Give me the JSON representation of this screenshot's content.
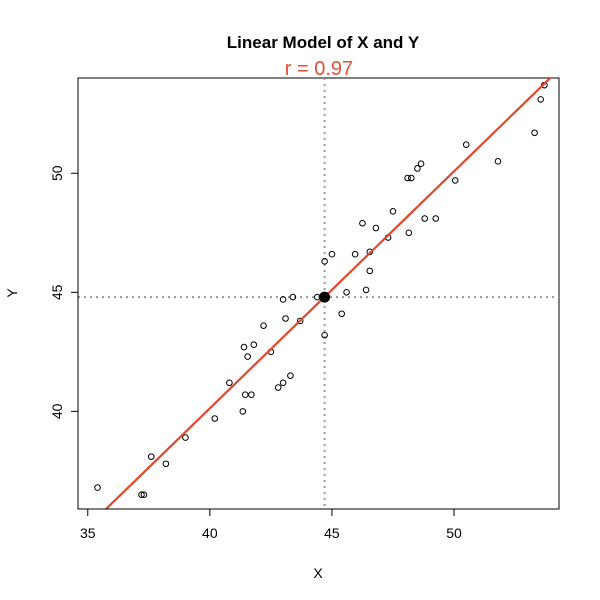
{
  "chart_data": {
    "type": "scatter",
    "title": "Linear Model of X and Y",
    "subtitle": "r = 0.97",
    "xlabel": "X",
    "ylabel": "Y",
    "xlim": [
      34.6,
      54.3
    ],
    "ylim": [
      35.9,
      54.0
    ],
    "xticks": [
      35,
      40,
      45,
      50
    ],
    "yticks": [
      40,
      45,
      50
    ],
    "mean_point": {
      "x": 44.7,
      "y": 44.8
    },
    "regression_line": {
      "slope": 0.995,
      "intercept": 0.33
    },
    "points": [
      {
        "x": 35.4,
        "y": 36.8
      },
      {
        "x": 37.2,
        "y": 36.5
      },
      {
        "x": 37.3,
        "y": 36.5
      },
      {
        "x": 37.6,
        "y": 38.1
      },
      {
        "x": 38.2,
        "y": 37.8
      },
      {
        "x": 39.0,
        "y": 38.9
      },
      {
        "x": 40.2,
        "y": 39.7
      },
      {
        "x": 40.8,
        "y": 41.2
      },
      {
        "x": 41.35,
        "y": 40.0
      },
      {
        "x": 41.45,
        "y": 40.7
      },
      {
        "x": 41.7,
        "y": 40.7
      },
      {
        "x": 41.4,
        "y": 42.7
      },
      {
        "x": 41.55,
        "y": 42.3
      },
      {
        "x": 41.8,
        "y": 42.8
      },
      {
        "x": 42.2,
        "y": 43.6
      },
      {
        "x": 42.5,
        "y": 42.5
      },
      {
        "x": 42.8,
        "y": 41.0
      },
      {
        "x": 43.0,
        "y": 41.2
      },
      {
        "x": 43.3,
        "y": 41.5
      },
      {
        "x": 43.1,
        "y": 43.9
      },
      {
        "x": 43.0,
        "y": 44.7
      },
      {
        "x": 43.4,
        "y": 44.8
      },
      {
        "x": 43.7,
        "y": 43.8
      },
      {
        "x": 44.4,
        "y": 44.8
      },
      {
        "x": 44.7,
        "y": 43.2
      },
      {
        "x": 44.7,
        "y": 46.3
      },
      {
        "x": 45.0,
        "y": 46.6
      },
      {
        "x": 45.4,
        "y": 44.1
      },
      {
        "x": 45.6,
        "y": 45.0
      },
      {
        "x": 45.95,
        "y": 46.6
      },
      {
        "x": 46.25,
        "y": 47.9
      },
      {
        "x": 46.4,
        "y": 45.1
      },
      {
        "x": 46.55,
        "y": 45.9
      },
      {
        "x": 46.55,
        "y": 46.7
      },
      {
        "x": 46.8,
        "y": 47.7
      },
      {
        "x": 47.3,
        "y": 47.3
      },
      {
        "x": 47.5,
        "y": 48.4
      },
      {
        "x": 48.15,
        "y": 47.5
      },
      {
        "x": 48.1,
        "y": 49.8
      },
      {
        "x": 48.25,
        "y": 49.8
      },
      {
        "x": 48.5,
        "y": 50.2
      },
      {
        "x": 48.65,
        "y": 50.4
      },
      {
        "x": 48.8,
        "y": 48.1
      },
      {
        "x": 49.25,
        "y": 48.1
      },
      {
        "x": 50.05,
        "y": 49.7
      },
      {
        "x": 50.5,
        "y": 51.2
      },
      {
        "x": 51.8,
        "y": 50.5
      },
      {
        "x": 53.3,
        "y": 51.7
      },
      {
        "x": 53.55,
        "y": 53.1
      },
      {
        "x": 53.7,
        "y": 53.7
      }
    ],
    "colors": {
      "regression": "#e0492c",
      "subtitle": "#e0503a",
      "points": "#000000",
      "guides": "#999999"
    }
  }
}
